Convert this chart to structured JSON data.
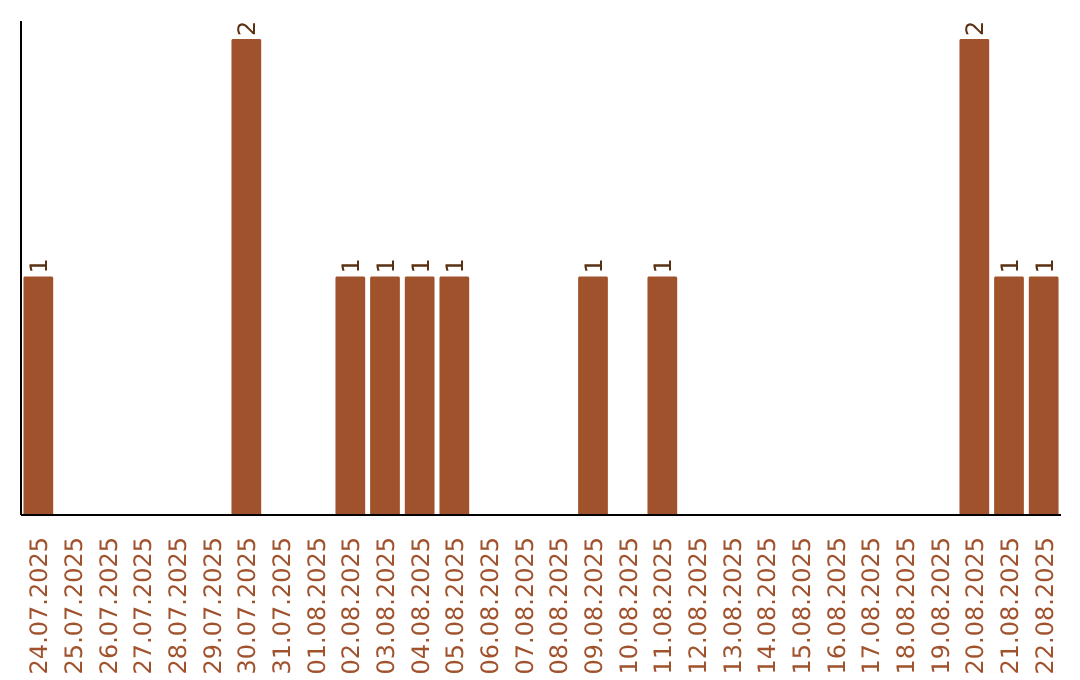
{
  "chart_data": {
    "type": "bar",
    "categories": [
      "24.07.2025",
      "25.07.2025",
      "26.07.2025",
      "27.07.2025",
      "28.07.2025",
      "29.07.2025",
      "30.07.2025",
      "31.07.2025",
      "01.08.2025",
      "02.08.2025",
      "03.08.2025",
      "04.08.2025",
      "05.08.2025",
      "06.08.2025",
      "07.08.2025",
      "08.08.2025",
      "09.08.2025",
      "10.08.2025",
      "11.08.2025",
      "12.08.2025",
      "13.08.2025",
      "14.08.2025",
      "15.08.2025",
      "16.08.2025",
      "17.08.2025",
      "18.08.2025",
      "19.08.2025",
      "20.08.2025",
      "21.08.2025",
      "22.08.2025"
    ],
    "values": [
      1,
      0,
      0,
      0,
      0,
      0,
      2,
      0,
      0,
      1,
      1,
      1,
      1,
      0,
      0,
      0,
      1,
      0,
      1,
      0,
      0,
      0,
      0,
      0,
      0,
      0,
      0,
      2,
      1,
      1
    ],
    "value_labels": [
      "1",
      null,
      null,
      null,
      null,
      null,
      "2",
      null,
      null,
      "1",
      "1",
      "1",
      "1",
      null,
      null,
      null,
      "1",
      null,
      "1",
      null,
      null,
      null,
      null,
      null,
      null,
      null,
      null,
      "2",
      "1",
      "1"
    ],
    "color": "#a0522d",
    "grid": false
  }
}
